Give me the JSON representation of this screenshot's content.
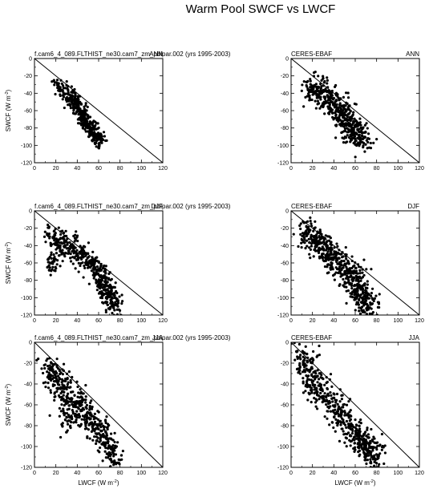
{
  "figure": {
    "title": "Warm Pool SWCF vs LWCF"
  },
  "chart_data": [
    {
      "type": "scatter",
      "panel": "left-top",
      "left_title": "f.cam6_4_089.FLTHIST_ne30.cam7_zm_pblpar.002 (yrs 1995-2003)",
      "right_title": "ANN",
      "xlabel": "",
      "ylabel": "SWCF (W m",
      "ylabel_sup": "-2",
      "ylabel_close": ")",
      "xlim": [
        0,
        120
      ],
      "ylim": [
        -120,
        0
      ],
      "xticks": [
        "0",
        "20",
        "40",
        "60",
        "80",
        "100",
        "120"
      ],
      "yticks": [
        "0",
        "-20",
        "-40",
        "-60",
        "-80",
        "-100",
        "-120"
      ],
      "reference_line": "y = -x",
      "cluster": [
        {
          "x": 21,
          "y": -30
        },
        {
          "x": 27,
          "y": -37
        },
        {
          "x": 33,
          "y": -43
        },
        {
          "x": 38,
          "y": -50
        },
        {
          "x": 41,
          "y": -57
        },
        {
          "x": 44,
          "y": -63
        },
        {
          "x": 46,
          "y": -68
        },
        {
          "x": 48,
          "y": -73
        },
        {
          "x": 51,
          "y": -78
        },
        {
          "x": 54,
          "y": -83
        },
        {
          "x": 57,
          "y": -88
        },
        {
          "x": 61,
          "y": -93
        }
      ],
      "spread": {
        "xs": 3,
        "ys": 5
      },
      "n_points": 420,
      "seed": 11
    },
    {
      "type": "scatter",
      "panel": "right-top",
      "left_title": "CERES-EBAF",
      "right_title": "ANN",
      "xlabel": "",
      "ylabel": "",
      "xlim": [
        0,
        120
      ],
      "ylim": [
        -120,
        0
      ],
      "xticks": [
        "0",
        "20",
        "40",
        "60",
        "80",
        "100",
        "120"
      ],
      "yticks": [
        "0",
        "-20",
        "-40",
        "-60",
        "-80",
        "-100",
        "-120"
      ],
      "reference_line": "y = -x",
      "cluster": [
        {
          "x": 20,
          "y": -35
        },
        {
          "x": 26,
          "y": -37
        },
        {
          "x": 32,
          "y": -42
        },
        {
          "x": 38,
          "y": -48
        },
        {
          "x": 42,
          "y": -56
        },
        {
          "x": 46,
          "y": -62
        },
        {
          "x": 50,
          "y": -68
        },
        {
          "x": 54,
          "y": -75
        },
        {
          "x": 57,
          "y": -81
        },
        {
          "x": 60,
          "y": -86
        },
        {
          "x": 63,
          "y": -92
        },
        {
          "x": 67,
          "y": -98
        }
      ],
      "spread": {
        "xs": 5,
        "ys": 8
      },
      "n_points": 500,
      "seed": 23
    },
    {
      "type": "scatter",
      "panel": "left-middle",
      "left_title": "f.cam6_4_089.FLTHIST_ne30.cam7_zm_pblpar.002 (yrs 1995-2003)",
      "right_title": "DJF",
      "xlabel": "",
      "ylabel": "SWCF (W m",
      "ylabel_sup": "-2",
      "ylabel_close": ")",
      "xlim": [
        0,
        120
      ],
      "ylim": [
        -120,
        0
      ],
      "xticks": [
        "0",
        "20",
        "40",
        "60",
        "80",
        "100",
        "120"
      ],
      "yticks": [
        "0",
        "-20",
        "-40",
        "-60",
        "-80",
        "-100",
        "-120"
      ],
      "reference_line": "y = -x",
      "cluster": [
        {
          "x": 16,
          "y": -30
        },
        {
          "x": 22,
          "y": -35
        },
        {
          "x": 30,
          "y": -40
        },
        {
          "x": 38,
          "y": -46
        },
        {
          "x": 46,
          "y": -53
        },
        {
          "x": 53,
          "y": -60
        },
        {
          "x": 59,
          "y": -70
        },
        {
          "x": 63,
          "y": -80
        },
        {
          "x": 67,
          "y": -90
        },
        {
          "x": 70,
          "y": -100
        },
        {
          "x": 74,
          "y": -108
        },
        {
          "x": 18,
          "y": -60
        }
      ],
      "spread": {
        "xs": 4,
        "ys": 7
      },
      "n_points": 520,
      "seed": 37
    },
    {
      "type": "scatter",
      "panel": "right-middle",
      "left_title": "CERES-EBAF",
      "right_title": "DJF",
      "xlabel": "",
      "ylabel": "",
      "xlim": [
        0,
        120
      ],
      "ylim": [
        -120,
        0
      ],
      "xticks": [
        "0",
        "20",
        "40",
        "60",
        "80",
        "100",
        "120"
      ],
      "yticks": [
        "0",
        "-20",
        "-40",
        "-60",
        "-80",
        "-100",
        "-120"
      ],
      "reference_line": "y = -x",
      "cluster": [
        {
          "x": 14,
          "y": -25
        },
        {
          "x": 20,
          "y": -32
        },
        {
          "x": 27,
          "y": -40
        },
        {
          "x": 34,
          "y": -48
        },
        {
          "x": 41,
          "y": -56
        },
        {
          "x": 48,
          "y": -64
        },
        {
          "x": 54,
          "y": -72
        },
        {
          "x": 59,
          "y": -80
        },
        {
          "x": 63,
          "y": -88
        },
        {
          "x": 66,
          "y": -96
        },
        {
          "x": 69,
          "y": -104
        },
        {
          "x": 72,
          "y": -112
        }
      ],
      "spread": {
        "xs": 5,
        "ys": 9
      },
      "n_points": 560,
      "seed": 53
    },
    {
      "type": "scatter",
      "panel": "left-bottom",
      "left_title": "f.cam6_4_089.FLTHIST_ne30.cam7_zm_pblpar.002 (yrs 1995-2003)",
      "right_title": "JJA",
      "xlabel": "LWCF (W m",
      "xlabel_sup": "-2",
      "xlabel_close": ")",
      "ylabel": "SWCF (W m",
      "ylabel_sup": "-2",
      "ylabel_close": ")",
      "xlim": [
        0,
        120
      ],
      "ylim": [
        -120,
        0
      ],
      "xticks": [
        "0",
        "20",
        "40",
        "60",
        "80",
        "100",
        "120"
      ],
      "yticks": [
        "0",
        "-20",
        "-40",
        "-60",
        "-80",
        "-100",
        "-120"
      ],
      "reference_line": "y = -x",
      "cluster": [
        {
          "x": 15,
          "y": -27
        },
        {
          "x": 20,
          "y": -35
        },
        {
          "x": 26,
          "y": -44
        },
        {
          "x": 33,
          "y": -52
        },
        {
          "x": 40,
          "y": -60
        },
        {
          "x": 47,
          "y": -68
        },
        {
          "x": 54,
          "y": -76
        },
        {
          "x": 60,
          "y": -84
        },
        {
          "x": 65,
          "y": -92
        },
        {
          "x": 70,
          "y": -100
        },
        {
          "x": 74,
          "y": -108
        },
        {
          "x": 32,
          "y": -75
        }
      ],
      "spread": {
        "xs": 5,
        "ys": 8
      },
      "n_points": 540,
      "seed": 71
    },
    {
      "type": "scatter",
      "panel": "right-bottom",
      "left_title": "CERES-EBAF",
      "right_title": "JJA",
      "xlabel": "LWCF (W m",
      "xlabel_sup": "-2",
      "xlabel_close": ")",
      "ylabel": "",
      "xlim": [
        0,
        120
      ],
      "ylim": [
        -120,
        0
      ],
      "xticks": [
        "0",
        "20",
        "40",
        "60",
        "80",
        "100",
        "120"
      ],
      "yticks": [
        "0",
        "-20",
        "-40",
        "-60",
        "-80",
        "-100",
        "-120"
      ],
      "reference_line": "y = -x",
      "cluster": [
        {
          "x": 10,
          "y": -18
        },
        {
          "x": 16,
          "y": -28
        },
        {
          "x": 22,
          "y": -38
        },
        {
          "x": 29,
          "y": -48
        },
        {
          "x": 36,
          "y": -58
        },
        {
          "x": 43,
          "y": -66
        },
        {
          "x": 50,
          "y": -74
        },
        {
          "x": 57,
          "y": -82
        },
        {
          "x": 63,
          "y": -90
        },
        {
          "x": 68,
          "y": -98
        },
        {
          "x": 73,
          "y": -104
        },
        {
          "x": 78,
          "y": -108
        }
      ],
      "spread": {
        "xs": 5,
        "ys": 8
      },
      "n_points": 560,
      "seed": 97
    }
  ]
}
